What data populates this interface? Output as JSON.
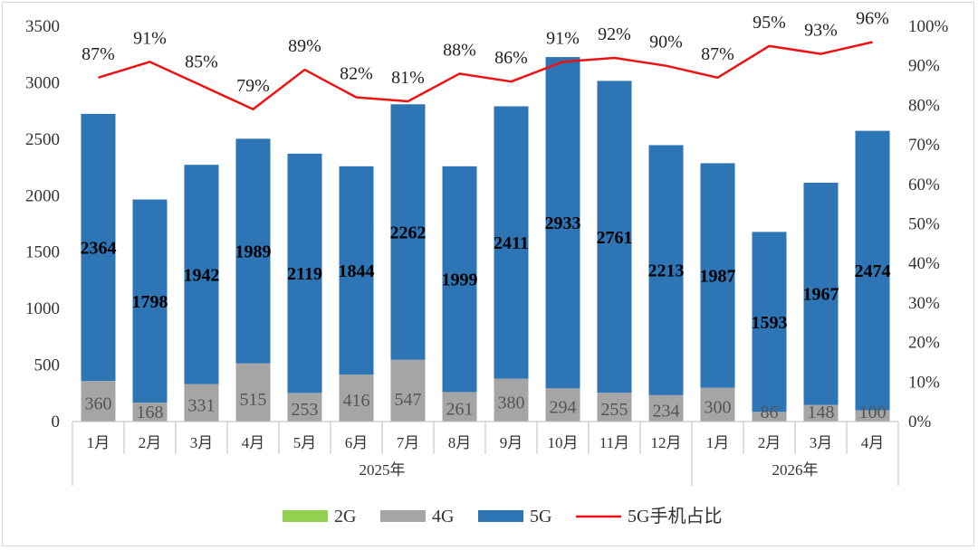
{
  "chart_data": {
    "type": "bar",
    "stacked": true,
    "categories": [
      "1月",
      "2月",
      "3月",
      "4月",
      "5月",
      "6月",
      "7月",
      "8月",
      "9月",
      "10月",
      "11月",
      "12月",
      "1月",
      "2月",
      "3月",
      "4月"
    ],
    "groups": [
      {
        "label": "2025年",
        "count": 12
      },
      {
        "label": "2026年",
        "count": 4
      }
    ],
    "series": [
      {
        "name": "2G",
        "color": "#92d050",
        "values": [
          0,
          0,
          0,
          0,
          0,
          0,
          0,
          0,
          0,
          0,
          0,
          0,
          0,
          0,
          0,
          0
        ]
      },
      {
        "name": "4G",
        "color": "#a5a5a5",
        "values": [
          360,
          168,
          331,
          515,
          253,
          416,
          547,
          261,
          380,
          294,
          255,
          234,
          300,
          86,
          148,
          100
        ]
      },
      {
        "name": "5G",
        "color": "#2e75b6",
        "values": [
          2364,
          1798,
          1942,
          1989,
          2119,
          1844,
          2262,
          1999,
          2411,
          2933,
          2761,
          2213,
          1987,
          1593,
          1967,
          2474
        ]
      }
    ],
    "line_series": {
      "name": "5G手机占比",
      "color": "#ee1111",
      "values": [
        87,
        91,
        85,
        79,
        89,
        82,
        81,
        88,
        86,
        91,
        92,
        90,
        87,
        95,
        93,
        96
      ],
      "labels": [
        "87%",
        "91%",
        "85%",
        "79%",
        "89%",
        "82%",
        "81%",
        "88%",
        "86%",
        "91%",
        "92%",
        "90%",
        "87%",
        "95%",
        "93%",
        "96%"
      ]
    },
    "y_left": {
      "min": 0,
      "max": 3500,
      "ticks": [
        "0",
        "500",
        "1000",
        "1500",
        "2000",
        "2500",
        "3000",
        "3500"
      ]
    },
    "y_right": {
      "min": 0,
      "max": 100,
      "ticks": [
        "0%",
        "10%",
        "20%",
        "30%",
        "40%",
        "50%",
        "60%",
        "70%",
        "80%",
        "90%",
        "100%"
      ]
    },
    "legend_position": "bottom",
    "grid": false
  }
}
